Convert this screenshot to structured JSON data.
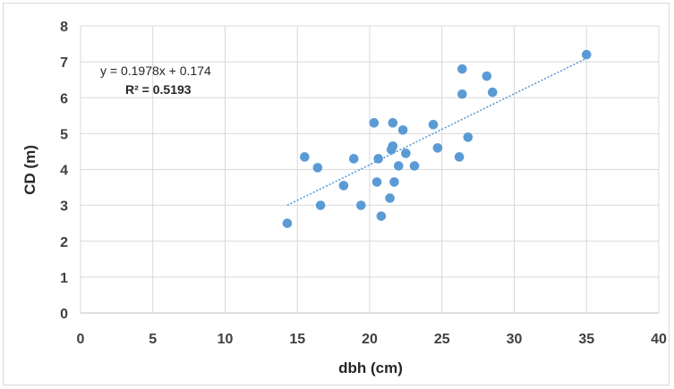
{
  "chart_data": {
    "type": "scatter",
    "xlabel": "dbh (cm)",
    "ylabel": "CD (m)",
    "xlim": [
      0,
      40
    ],
    "ylim": [
      0,
      8
    ],
    "x_ticks": [
      0,
      5,
      10,
      15,
      20,
      25,
      30,
      35,
      40
    ],
    "y_ticks": [
      0,
      1,
      2,
      3,
      4,
      5,
      6,
      7,
      8
    ],
    "grid": true,
    "marker_color": "#5B9BD5",
    "trendline_color": "#5B9BD5",
    "trendline": {
      "slope": 0.1978,
      "intercept": 0.174,
      "x_range": [
        14.3,
        35.0
      ],
      "equation_label": "y = 0.1978x + 0.174",
      "r2_label": "R² = 0.5193"
    },
    "points": [
      {
        "x": 14.3,
        "y": 2.5
      },
      {
        "x": 15.5,
        "y": 4.35
      },
      {
        "x": 16.4,
        "y": 4.05
      },
      {
        "x": 16.6,
        "y": 3.0
      },
      {
        "x": 18.2,
        "y": 3.55
      },
      {
        "x": 18.9,
        "y": 4.3
      },
      {
        "x": 19.4,
        "y": 3.0
      },
      {
        "x": 20.3,
        "y": 5.3
      },
      {
        "x": 20.5,
        "y": 3.65
      },
      {
        "x": 20.6,
        "y": 4.3
      },
      {
        "x": 20.8,
        "y": 2.7
      },
      {
        "x": 21.4,
        "y": 3.2
      },
      {
        "x": 21.5,
        "y": 4.55
      },
      {
        "x": 21.6,
        "y": 4.65
      },
      {
        "x": 21.6,
        "y": 5.3
      },
      {
        "x": 21.7,
        "y": 3.65
      },
      {
        "x": 22.0,
        "y": 4.1
      },
      {
        "x": 22.3,
        "y": 5.1
      },
      {
        "x": 22.5,
        "y": 4.45
      },
      {
        "x": 23.1,
        "y": 4.1
      },
      {
        "x": 24.4,
        "y": 5.25
      },
      {
        "x": 24.7,
        "y": 4.6
      },
      {
        "x": 26.2,
        "y": 4.35
      },
      {
        "x": 26.4,
        "y": 6.8
      },
      {
        "x": 26.4,
        "y": 6.1
      },
      {
        "x": 26.8,
        "y": 4.9
      },
      {
        "x": 28.1,
        "y": 6.6
      },
      {
        "x": 28.5,
        "y": 6.15
      },
      {
        "x": 35.0,
        "y": 7.2
      }
    ]
  }
}
